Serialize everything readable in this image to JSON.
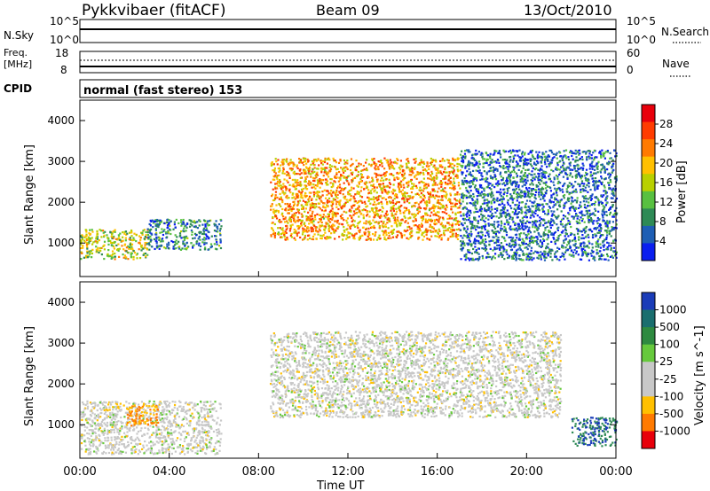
{
  "header": {
    "title": "Pykkvibaer (fitACF)",
    "beam": "Beam 09",
    "date": "13/Oct/2010"
  },
  "nsky_panel": {
    "left_label": "N.Sky",
    "right_label": "N.Search",
    "left_ticks": [
      "10^5",
      "10^0"
    ],
    "right_ticks": [
      "10^5",
      "10^0"
    ]
  },
  "freq_panel": {
    "left_label_line1": "Freq.",
    "left_label_line2": "[MHz]",
    "right_label": "Nave",
    "left_ticks": [
      "18",
      "8"
    ],
    "right_ticks": [
      "60",
      "0"
    ]
  },
  "cpid": {
    "label": "CPID",
    "text": "normal (fast stereo) 153"
  },
  "power_panel": {
    "ylabel": "Slant Range [km]",
    "yticks": [
      "4000",
      "3000",
      "2000",
      "1000"
    ],
    "colorbar_label": "Power [dB]",
    "colorbar_ticks": [
      "28",
      "24",
      "20",
      "16",
      "12",
      "8",
      "4"
    ],
    "colorbar_colors": [
      "#e8000b",
      "#ff3c00",
      "#ff7a00",
      "#ffc000",
      "#b8d000",
      "#58c040",
      "#2e8a55",
      "#1e5eb4",
      "#0a1eef"
    ]
  },
  "velocity_panel": {
    "ylabel": "Slant Range [km]",
    "yticks": [
      "4000",
      "3000",
      "2000",
      "1000"
    ],
    "colorbar_label": "Velocity [m s^-1]",
    "colorbar_ticks": [
      "1000",
      "500",
      "100",
      "25",
      "-25",
      "-100",
      "-500",
      "-1000"
    ],
    "colorbar_colors": [
      "#1a3cb8",
      "#1a6e6e",
      "#2e8a40",
      "#66c93c",
      "#c8c8c8",
      "#c8c8c8",
      "#ffc000",
      "#ff7a00",
      "#e8000b"
    ]
  },
  "xaxis": {
    "xlabel": "Time UT",
    "ticks": [
      "00:00",
      "04:00",
      "08:00",
      "12:00",
      "16:00",
      "20:00",
      "00:00"
    ]
  },
  "chart_data": [
    {
      "type": "heatmap",
      "title": "Pykkvibaer (fitACF)",
      "xlabel": "Time UT",
      "ylabel": "Slant Range [km]",
      "xlim": [
        0,
        24
      ],
      "ylim": [
        180,
        4500
      ],
      "colorbar": "Power [dB]",
      "colorbar_range": [
        0,
        30
      ],
      "echo_regions": [
        {
          "t_start": 0.0,
          "t_end": 3.0,
          "range_start": 620,
          "range_end": 1350,
          "peak_power_db": 22
        },
        {
          "t_start": 3.0,
          "t_end": 6.3,
          "range_start": 850,
          "range_end": 1600,
          "peak_power_db": 14
        },
        {
          "t_start": 8.5,
          "t_end": 17.0,
          "range_start": 1100,
          "range_end": 3100,
          "peak_power_db": 28
        },
        {
          "t_start": 17.0,
          "t_end": 24.0,
          "range_start": 600,
          "range_end": 3300,
          "peak_power_db": 12
        }
      ]
    },
    {
      "type": "heatmap",
      "xlabel": "Time UT",
      "ylabel": "Slant Range [km]",
      "xlim": [
        0,
        24
      ],
      "ylim": [
        180,
        4500
      ],
      "colorbar": "Velocity [m s^-1]",
      "colorbar_range": [
        -1000,
        1000
      ],
      "echo_regions": [
        {
          "t_start": 0.0,
          "t_end": 6.3,
          "range_start": 300,
          "range_end": 1600,
          "typical_velocity": -25
        },
        {
          "t_start": 2.0,
          "t_end": 3.5,
          "range_start": 1000,
          "range_end": 1500,
          "typical_velocity": -500
        },
        {
          "t_start": 8.5,
          "t_end": 21.5,
          "range_start": 1200,
          "range_end": 3300,
          "typical_velocity": 0
        },
        {
          "t_start": 22.0,
          "t_end": 24.0,
          "range_start": 500,
          "range_end": 1200,
          "typical_velocity": 500
        }
      ]
    }
  ]
}
